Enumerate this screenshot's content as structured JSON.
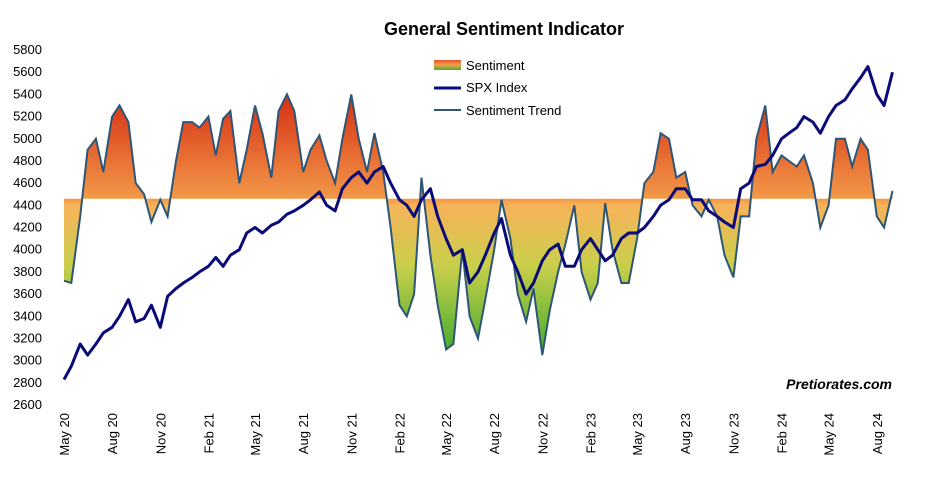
{
  "chart_data": {
    "type": "line",
    "title": "General Sentiment Indicator",
    "ylim": [
      2600,
      5800
    ],
    "yticks": [
      2600,
      2800,
      3000,
      3200,
      3400,
      3600,
      3800,
      4000,
      4200,
      4400,
      4600,
      4800,
      5000,
      5200,
      5400,
      5600,
      5800
    ],
    "xlim": [
      "2020-05",
      "2024-09"
    ],
    "xticks": [
      {
        "label": "May 20",
        "date": "2020-05"
      },
      {
        "label": "Aug 20",
        "date": "2020-08"
      },
      {
        "label": "Nov 20",
        "date": "2020-11"
      },
      {
        "label": "Feb 21",
        "date": "2021-02"
      },
      {
        "label": "May 21",
        "date": "2021-05"
      },
      {
        "label": "Aug 21",
        "date": "2021-08"
      },
      {
        "label": "Nov 21",
        "date": "2021-11"
      },
      {
        "label": "Feb 22",
        "date": "2022-02"
      },
      {
        "label": "May 22",
        "date": "2022-05"
      },
      {
        "label": "Aug 22",
        "date": "2022-08"
      },
      {
        "label": "Nov 22",
        "date": "2022-11"
      },
      {
        "label": "Feb 23",
        "date": "2023-02"
      },
      {
        "label": "May 23",
        "date": "2023-05"
      },
      {
        "label": "Aug 23",
        "date": "2023-08"
      },
      {
        "label": "Nov 23",
        "date": "2023-11"
      },
      {
        "label": "Feb 24",
        "date": "2024-02"
      },
      {
        "label": "May 24",
        "date": "2024-05"
      },
      {
        "label": "Aug 24",
        "date": "2024-08"
      }
    ],
    "baseline": 4460,
    "legend": {
      "position": "top-center",
      "entries": [
        {
          "label": "Sentiment",
          "style": "gradient"
        },
        {
          "label": "SPX Index",
          "style": "thick-line"
        },
        {
          "label": "Sentiment Trend",
          "style": "thin-line"
        }
      ]
    },
    "colors": {
      "sentiment_high": "#d93a1b",
      "sentiment_mid": "#f2a14a",
      "sentiment_low": "#46b030",
      "sentiment_trend": "#2d5575",
      "spx": "#0a0a78"
    },
    "series": [
      {
        "name": "Sentiment",
        "x": [
          "2020-05-01",
          "2020-05-15",
          "2020-06-01",
          "2020-06-15",
          "2020-07-01",
          "2020-07-15",
          "2020-08-01",
          "2020-08-15",
          "2020-09-01",
          "2020-09-15",
          "2020-10-01",
          "2020-10-15",
          "2020-11-01",
          "2020-11-15",
          "2020-12-01",
          "2020-12-15",
          "2021-01-01",
          "2021-01-15",
          "2021-02-01",
          "2021-02-15",
          "2021-03-01",
          "2021-03-15",
          "2021-04-01",
          "2021-04-15",
          "2021-05-01",
          "2021-05-15",
          "2021-06-01",
          "2021-06-15",
          "2021-07-01",
          "2021-07-15",
          "2021-08-01",
          "2021-08-15",
          "2021-09-01",
          "2021-09-15",
          "2021-10-01",
          "2021-10-15",
          "2021-11-01",
          "2021-11-15",
          "2021-12-01",
          "2021-12-15",
          "2022-01-01",
          "2022-01-15",
          "2022-02-01",
          "2022-02-15",
          "2022-03-01",
          "2022-03-15",
          "2022-04-01",
          "2022-04-15",
          "2022-05-01",
          "2022-05-15",
          "2022-06-01",
          "2022-06-15",
          "2022-07-01",
          "2022-07-15",
          "2022-08-01",
          "2022-08-15",
          "2022-09-01",
          "2022-09-15",
          "2022-10-01",
          "2022-10-15",
          "2022-11-01",
          "2022-11-15",
          "2022-12-01",
          "2022-12-15",
          "2023-01-01",
          "2023-01-15",
          "2023-02-01",
          "2023-02-15",
          "2023-03-01",
          "2023-03-15",
          "2023-04-01",
          "2023-04-15",
          "2023-05-01",
          "2023-05-15",
          "2023-06-01",
          "2023-06-15",
          "2023-07-01",
          "2023-07-15",
          "2023-08-01",
          "2023-08-15",
          "2023-09-01",
          "2023-09-15",
          "2023-10-01",
          "2023-10-15",
          "2023-11-01",
          "2023-11-15",
          "2023-12-01",
          "2023-12-15",
          "2024-01-01",
          "2024-01-15",
          "2024-02-01",
          "2024-02-15",
          "2024-03-01",
          "2024-03-15",
          "2024-04-01",
          "2024-04-15",
          "2024-05-01",
          "2024-05-15",
          "2024-06-01",
          "2024-06-15",
          "2024-07-01",
          "2024-07-15",
          "2024-08-01",
          "2024-08-15",
          "2024-08-31"
        ],
        "values": [
          3720,
          3700,
          4300,
          4900,
          5000,
          4700,
          5200,
          5300,
          5150,
          4600,
          4500,
          4250,
          4450,
          4300,
          4800,
          5150,
          5150,
          5100,
          5200,
          4850,
          5180,
          5250,
          4600,
          4900,
          5300,
          5050,
          4650,
          5250,
          5400,
          5250,
          4700,
          4900,
          5030,
          4800,
          4600,
          5000,
          5400,
          5000,
          4700,
          5050,
          4700,
          4200,
          3500,
          3400,
          3600,
          4650,
          3950,
          3500,
          3100,
          3150,
          4000,
          3400,
          3200,
          3550,
          4000,
          4450,
          4100,
          3600,
          3350,
          3650,
          3050,
          3450,
          3800,
          4050,
          4400,
          3800,
          3550,
          3700,
          4420,
          4000,
          3700,
          3700,
          4100,
          4600,
          4700,
          5050,
          5000,
          4650,
          4700,
          4400,
          4300,
          4450,
          4300,
          3950,
          3750,
          4300,
          4300,
          5000,
          5300,
          4700,
          4850,
          4800,
          4750,
          4850,
          4600,
          4200,
          4400,
          5000,
          5000,
          4750,
          5000,
          4900,
          4300,
          4200,
          4530
        ]
      },
      {
        "name": "SPX Index",
        "x": [
          "2020-05-01",
          "2020-05-15",
          "2020-06-01",
          "2020-06-15",
          "2020-07-01",
          "2020-07-15",
          "2020-08-01",
          "2020-08-15",
          "2020-09-01",
          "2020-09-15",
          "2020-10-01",
          "2020-10-15",
          "2020-11-01",
          "2020-11-15",
          "2020-12-01",
          "2020-12-15",
          "2021-01-01",
          "2021-01-15",
          "2021-02-01",
          "2021-02-15",
          "2021-03-01",
          "2021-03-15",
          "2021-04-01",
          "2021-04-15",
          "2021-05-01",
          "2021-05-15",
          "2021-06-01",
          "2021-06-15",
          "2021-07-01",
          "2021-07-15",
          "2021-08-01",
          "2021-08-15",
          "2021-09-01",
          "2021-09-15",
          "2021-10-01",
          "2021-10-15",
          "2021-11-01",
          "2021-11-15",
          "2021-12-01",
          "2021-12-15",
          "2022-01-01",
          "2022-01-15",
          "2022-02-01",
          "2022-02-15",
          "2022-03-01",
          "2022-03-15",
          "2022-04-01",
          "2022-04-15",
          "2022-05-01",
          "2022-05-15",
          "2022-06-01",
          "2022-06-15",
          "2022-07-01",
          "2022-07-15",
          "2022-08-01",
          "2022-08-15",
          "2022-09-01",
          "2022-09-15",
          "2022-10-01",
          "2022-10-15",
          "2022-11-01",
          "2022-11-15",
          "2022-12-01",
          "2022-12-15",
          "2023-01-01",
          "2023-01-15",
          "2023-02-01",
          "2023-02-15",
          "2023-03-01",
          "2023-03-15",
          "2023-04-01",
          "2023-04-15",
          "2023-05-01",
          "2023-05-15",
          "2023-06-01",
          "2023-06-15",
          "2023-07-01",
          "2023-07-15",
          "2023-08-01",
          "2023-08-15",
          "2023-09-01",
          "2023-09-15",
          "2023-10-01",
          "2023-10-15",
          "2023-11-01",
          "2023-11-15",
          "2023-12-01",
          "2023-12-15",
          "2024-01-01",
          "2024-01-15",
          "2024-02-01",
          "2024-02-15",
          "2024-03-01",
          "2024-03-15",
          "2024-04-01",
          "2024-04-15",
          "2024-05-01",
          "2024-05-15",
          "2024-06-01",
          "2024-06-15",
          "2024-07-01",
          "2024-07-15",
          "2024-08-01",
          "2024-08-15",
          "2024-08-31"
        ],
        "values": [
          2830,
          2950,
          3150,
          3050,
          3150,
          3250,
          3300,
          3400,
          3550,
          3350,
          3380,
          3500,
          3300,
          3580,
          3650,
          3700,
          3750,
          3800,
          3850,
          3930,
          3850,
          3950,
          4000,
          4150,
          4200,
          4150,
          4220,
          4250,
          4320,
          4350,
          4400,
          4450,
          4520,
          4400,
          4350,
          4550,
          4650,
          4700,
          4600,
          4700,
          4750,
          4600,
          4450,
          4400,
          4300,
          4450,
          4550,
          4300,
          4100,
          3950,
          4000,
          3700,
          3800,
          3950,
          4150,
          4280,
          3950,
          3800,
          3600,
          3700,
          3900,
          4000,
          4050,
          3850,
          3850,
          4000,
          4100,
          4000,
          3900,
          3950,
          4100,
          4150,
          4150,
          4200,
          4300,
          4400,
          4450,
          4550,
          4550,
          4450,
          4450,
          4350,
          4300,
          4250,
          4200,
          4550,
          4600,
          4750,
          4770,
          4850,
          5000,
          5050,
          5100,
          5200,
          5150,
          5050,
          5200,
          5300,
          5350,
          5450,
          5550,
          5650,
          5400,
          5300,
          5600
        ]
      },
      {
        "name": "Sentiment Trend",
        "x": [],
        "values": []
      }
    ],
    "annotations": [
      {
        "text": "Pretiorates.com",
        "position": "bottom-right"
      }
    ]
  }
}
